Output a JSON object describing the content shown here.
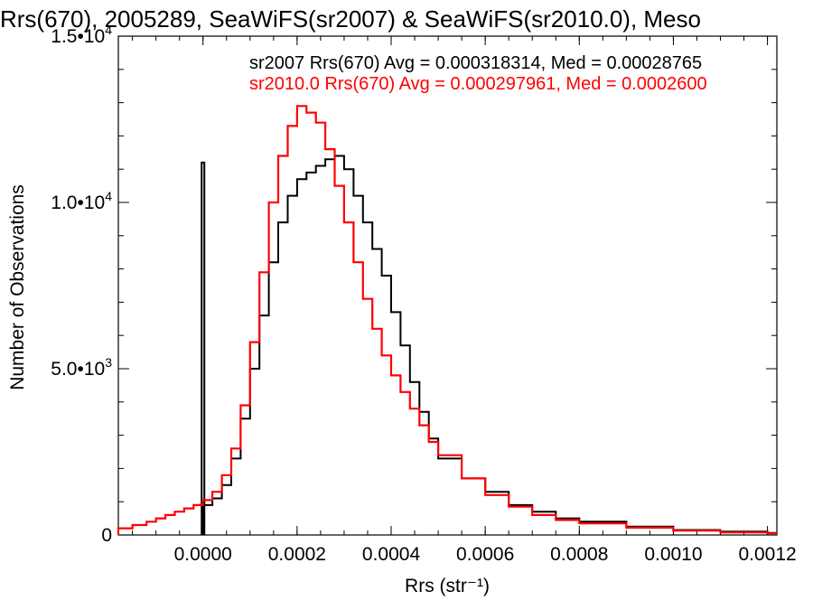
{
  "chart_data": {
    "type": "line",
    "title": "Rrs(670), 2005289, SeaWiFS(sr2007) & SeaWiFS(sr2010.0), Meso",
    "xlabel": "Rrs (str⁻¹)",
    "ylabel": "Number of Observations",
    "xlim": [
      -0.00018,
      0.00122
    ],
    "ylim": [
      0,
      15000
    ],
    "x_ticks": [
      0.0,
      0.0002,
      0.0004,
      0.0006,
      0.0008,
      0.001,
      0.0012
    ],
    "x_tick_labels": [
      "0.0000",
      "0.0002",
      "0.0004",
      "0.0006",
      "0.0008",
      "0.0010",
      "0.0012"
    ],
    "y_ticks": [
      0,
      5000,
      10000,
      15000
    ],
    "y_tick_labels": [
      {
        "mantissa": "0",
        "exponent": ""
      },
      {
        "mantissa": "5.0•10",
        "exponent": "3"
      },
      {
        "mantissa": "1.0•10",
        "exponent": "4"
      },
      {
        "mantissa": "1.5•10",
        "exponent": "4"
      }
    ],
    "annotations": [
      {
        "text": "sr2007 Rrs(670) Avg = 0.000318314, Med = 0.00028765",
        "color": "#000000"
      },
      {
        "text": "sr2010.0 Rrs(670) Avg = 0.000297961, Med = 0.0002600",
        "color": "#ff0000"
      }
    ],
    "series": [
      {
        "color": "#000000",
        "x": [
          0.0,
          2e-05,
          4e-05,
          6e-05,
          8e-05,
          0.0001,
          0.00012,
          0.00014,
          0.00016,
          0.00018,
          0.0002,
          0.00022,
          0.00024,
          0.00026,
          0.00028,
          0.0003,
          0.00032,
          0.00034,
          0.00036,
          0.00038,
          0.0004,
          0.00042,
          0.00044,
          0.00046,
          0.00048,
          0.0005,
          0.00055,
          0.0006,
          0.00065,
          0.0007,
          0.00075,
          0.0008,
          0.0009,
          0.001,
          0.0011,
          0.0012
        ],
        "y": [
          900,
          1100,
          1500,
          2300,
          3500,
          5000,
          6600,
          8200,
          9400,
          10200,
          10700,
          10900,
          11100,
          11300,
          11400,
          11000,
          10200,
          9400,
          8600,
          7800,
          6700,
          5700,
          4600,
          3700,
          2900,
          2300,
          1700,
          1300,
          900,
          700,
          500,
          400,
          250,
          150,
          100,
          60
        ],
        "spike": {
          "x": 0.0,
          "y": 11200
        }
      },
      {
        "color": "#ff0000",
        "x": [
          -0.00018,
          -0.00015,
          -0.00012,
          -0.0001,
          -8e-05,
          -6e-05,
          -4e-05,
          -2e-05,
          0.0,
          2e-05,
          4e-05,
          6e-05,
          8e-05,
          0.0001,
          0.00012,
          0.00014,
          0.00016,
          0.00018,
          0.0002,
          0.00022,
          0.00024,
          0.00026,
          0.00028,
          0.0003,
          0.00032,
          0.00034,
          0.00036,
          0.00038,
          0.0004,
          0.00042,
          0.00044,
          0.00046,
          0.00048,
          0.0005,
          0.00055,
          0.0006,
          0.00065,
          0.0007,
          0.00075,
          0.0008,
          0.0009,
          0.001,
          0.0011,
          0.0012
        ],
        "y": [
          200,
          300,
          400,
          500,
          600,
          700,
          800,
          900,
          1050,
          1300,
          1800,
          2600,
          3900,
          5800,
          7900,
          10000,
          11400,
          12300,
          12900,
          12700,
          12400,
          11600,
          10500,
          9400,
          8200,
          7100,
          6200,
          5400,
          4800,
          4300,
          3800,
          3300,
          2800,
          2400,
          1700,
          1200,
          850,
          600,
          450,
          350,
          220,
          130,
          80,
          50
        ]
      }
    ]
  }
}
